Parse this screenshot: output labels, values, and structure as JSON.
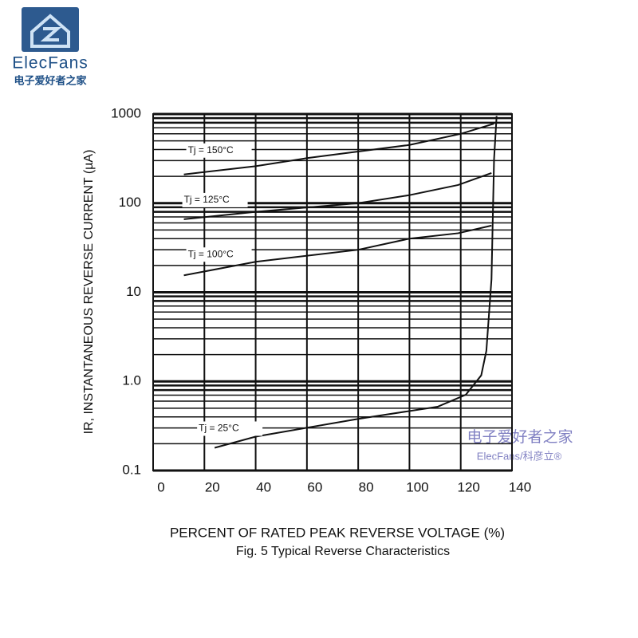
{
  "logo": {
    "brand": "ElecFans",
    "tagline": "电子爱好者之家"
  },
  "watermark": {
    "line1": "电子爱好者之家",
    "line2": "ElecFans/科彦立®"
  },
  "chart_data": {
    "type": "line",
    "ylabel": "IR, INSTANTANEOUS REVERSE CURRENT (µA)",
    "xlabel": "PERCENT OF RATED PEAK REVERSE VOLTAGE (%)",
    "caption": "Fig. 5  Typical Reverse Characteristics",
    "xlim": [
      0,
      140
    ],
    "xticks": [
      0,
      20,
      40,
      60,
      80,
      100,
      120,
      140
    ],
    "ylim": [
      0.1,
      1000
    ],
    "yscale": "log",
    "yticks": [
      0.1,
      {
        "value": 1,
        "label": "1.0"
      },
      10,
      100,
      1000
    ],
    "grid": true,
    "series": [
      {
        "name": "Tj = 150°C",
        "color": "#111111",
        "x": [
          12,
          40,
          60,
          80,
          100,
          120,
          133
        ],
        "values": [
          210,
          260,
          320,
          380,
          450,
          600,
          780
        ]
      },
      {
        "name": "Tj = 125°C",
        "color": "#111111",
        "x": [
          12,
          40,
          80,
          100,
          119,
          132
        ],
        "values": [
          66,
          80,
          100,
          123,
          160,
          218
        ]
      },
      {
        "name": "Tj = 100°C",
        "color": "#111111",
        "x": [
          12,
          40,
          80,
          100,
          119,
          132
        ],
        "values": [
          15.5,
          22,
          30,
          40,
          46,
          56
        ]
      },
      {
        "name": "Tj = 25°C",
        "color": "#111111",
        "x": [
          24,
          40,
          80,
          111,
          122,
          128,
          130,
          132,
          133,
          134
        ],
        "values": [
          0.18,
          0.24,
          0.38,
          0.52,
          0.71,
          1.17,
          2.2,
          14,
          310,
          950
        ]
      }
    ]
  }
}
